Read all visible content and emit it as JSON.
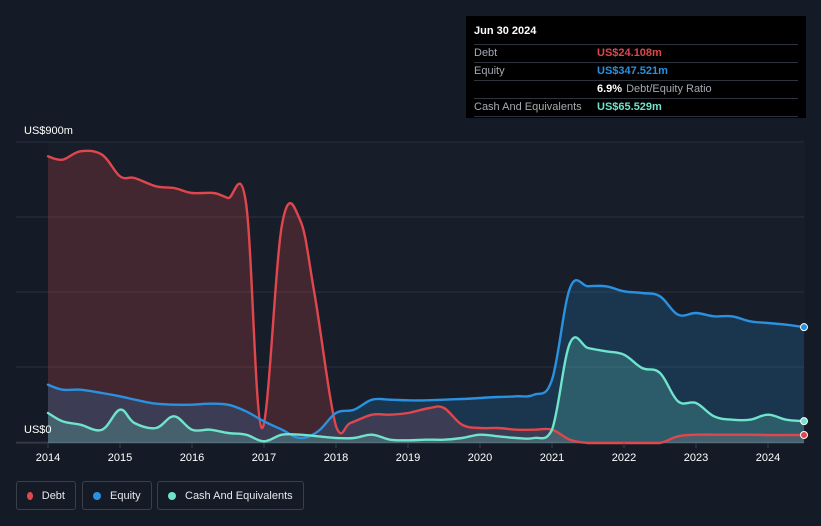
{
  "tooltip": {
    "date": "Jun 30 2024",
    "rows": [
      {
        "label": "Debt",
        "value": "US$24.108m",
        "color": "#e0474c"
      },
      {
        "label": "Equity",
        "value": "US$347.521m",
        "color": "#2a91e0"
      },
      {
        "label": "",
        "value": "6.9%",
        "suffix": "Debt/Equity Ratio",
        "color": "#ffffff"
      },
      {
        "label": "Cash And Equivalents",
        "value": "US$65.529m",
        "color": "#6fe3cc"
      }
    ]
  },
  "axis": {
    "y_top_label": "US$900m",
    "y_bottom_label": "US$0",
    "x_ticks": [
      "2014",
      "2015",
      "2016",
      "2017",
      "2018",
      "2019",
      "2020",
      "2021",
      "2022",
      "2023",
      "2024"
    ]
  },
  "legend": [
    {
      "label": "Debt",
      "color": "#e0474c"
    },
    {
      "label": "Equity",
      "color": "#2a91e0"
    },
    {
      "label": "Cash And Equivalents",
      "color": "#6fe3cc"
    }
  ],
  "chart_data": {
    "type": "area",
    "ylim": [
      0,
      900
    ],
    "xlim": [
      2014.0,
      2024.5
    ],
    "x_ticks": [
      2014,
      2015,
      2016,
      2017,
      2018,
      2019,
      2020,
      2021,
      2022,
      2023,
      2024
    ],
    "grid": true,
    "legend_position": "bottom-left",
    "series": [
      {
        "name": "Debt",
        "color": "#e0474c",
        "points": [
          [
            2014.0,
            860
          ],
          [
            2014.2,
            850
          ],
          [
            2014.45,
            875
          ],
          [
            2014.75,
            865
          ],
          [
            2015.0,
            800
          ],
          [
            2015.2,
            795
          ],
          [
            2015.5,
            770
          ],
          [
            2015.75,
            765
          ],
          [
            2016.0,
            750
          ],
          [
            2016.3,
            750
          ],
          [
            2016.5,
            735
          ],
          [
            2016.75,
            720
          ],
          [
            2016.97,
            45
          ],
          [
            2017.25,
            655
          ],
          [
            2017.5,
            670
          ],
          [
            2017.7,
            450
          ],
          [
            2018.0,
            50
          ],
          [
            2018.2,
            60
          ],
          [
            2018.5,
            85
          ],
          [
            2018.75,
            85
          ],
          [
            2019.0,
            90
          ],
          [
            2019.3,
            105
          ],
          [
            2019.5,
            105
          ],
          [
            2019.75,
            55
          ],
          [
            2020.0,
            45
          ],
          [
            2020.25,
            45
          ],
          [
            2020.5,
            40
          ],
          [
            2020.75,
            40
          ],
          [
            2021.0,
            40
          ],
          [
            2021.25,
            10
          ],
          [
            2021.5,
            0
          ],
          [
            2021.75,
            0
          ],
          [
            2022.0,
            0
          ],
          [
            2022.25,
            0
          ],
          [
            2022.5,
            0
          ],
          [
            2022.75,
            20
          ],
          [
            2023.0,
            25
          ],
          [
            2023.25,
            25
          ],
          [
            2023.5,
            25
          ],
          [
            2023.75,
            25
          ],
          [
            2024.0,
            24
          ],
          [
            2024.25,
            24
          ],
          [
            2024.5,
            24.108
          ]
        ]
      },
      {
        "name": "Equity",
        "color": "#2a91e0",
        "points": [
          [
            2014.0,
            175
          ],
          [
            2014.2,
            160
          ],
          [
            2014.45,
            160
          ],
          [
            2014.75,
            150
          ],
          [
            2015.0,
            140
          ],
          [
            2015.25,
            128
          ],
          [
            2015.5,
            118
          ],
          [
            2015.75,
            115
          ],
          [
            2016.0,
            115
          ],
          [
            2016.25,
            118
          ],
          [
            2016.5,
            115
          ],
          [
            2016.75,
            95
          ],
          [
            2017.0,
            65
          ],
          [
            2017.25,
            40
          ],
          [
            2017.5,
            15
          ],
          [
            2017.75,
            35
          ],
          [
            2018.0,
            90
          ],
          [
            2018.25,
            100
          ],
          [
            2018.5,
            130
          ],
          [
            2018.75,
            130
          ],
          [
            2019.0,
            128
          ],
          [
            2019.25,
            128
          ],
          [
            2019.5,
            130
          ],
          [
            2019.75,
            132
          ],
          [
            2020.0,
            135
          ],
          [
            2020.25,
            138
          ],
          [
            2020.5,
            140
          ],
          [
            2020.75,
            145
          ],
          [
            2021.0,
            190
          ],
          [
            2021.25,
            465
          ],
          [
            2021.5,
            470
          ],
          [
            2021.75,
            470
          ],
          [
            2022.0,
            455
          ],
          [
            2022.25,
            450
          ],
          [
            2022.5,
            440
          ],
          [
            2022.75,
            385
          ],
          [
            2023.0,
            390
          ],
          [
            2023.25,
            380
          ],
          [
            2023.5,
            380
          ],
          [
            2023.75,
            365
          ],
          [
            2024.0,
            360
          ],
          [
            2024.25,
            355
          ],
          [
            2024.5,
            347.521
          ]
        ]
      },
      {
        "name": "Cash And Equivalents",
        "color": "#6fe3cc",
        "points": [
          [
            2014.0,
            90
          ],
          [
            2014.2,
            65
          ],
          [
            2014.45,
            55
          ],
          [
            2014.75,
            40
          ],
          [
            2015.0,
            100
          ],
          [
            2015.2,
            60
          ],
          [
            2015.5,
            45
          ],
          [
            2015.75,
            80
          ],
          [
            2016.0,
            40
          ],
          [
            2016.25,
            40
          ],
          [
            2016.5,
            30
          ],
          [
            2016.75,
            25
          ],
          [
            2017.0,
            5
          ],
          [
            2017.25,
            25
          ],
          [
            2017.5,
            25
          ],
          [
            2017.75,
            20
          ],
          [
            2018.0,
            15
          ],
          [
            2018.25,
            15
          ],
          [
            2018.5,
            25
          ],
          [
            2018.75,
            10
          ],
          [
            2019.0,
            8
          ],
          [
            2019.25,
            10
          ],
          [
            2019.5,
            10
          ],
          [
            2019.75,
            15
          ],
          [
            2020.0,
            25
          ],
          [
            2020.25,
            20
          ],
          [
            2020.5,
            15
          ],
          [
            2020.75,
            15
          ],
          [
            2021.0,
            40
          ],
          [
            2021.25,
            300
          ],
          [
            2021.5,
            285
          ],
          [
            2021.75,
            275
          ],
          [
            2022.0,
            265
          ],
          [
            2022.25,
            225
          ],
          [
            2022.5,
            210
          ],
          [
            2022.75,
            125
          ],
          [
            2023.0,
            120
          ],
          [
            2023.25,
            80
          ],
          [
            2023.5,
            70
          ],
          [
            2023.75,
            70
          ],
          [
            2024.0,
            85
          ],
          [
            2024.25,
            70
          ],
          [
            2024.5,
            65.529
          ]
        ]
      }
    ]
  }
}
